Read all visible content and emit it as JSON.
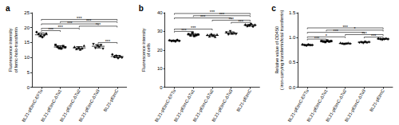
{
  "chart_data": [
    {
      "type": "scatter",
      "title": "a",
      "y_label": [
        "Fluorescence intensity",
        "of ferric-holo-transferrin"
      ],
      "categories": [
        "BL21-pEtmC-EFTu",
        "BL21-pEtmC-ΔTu1",
        "BL21-pEtmC-ΔTu2",
        "BL21-pEtmC-ΔTu3",
        "BL21-pEtmC"
      ],
      "groups": [
        {
          "marker": "circle",
          "values": [
            18.5,
            17.8,
            17.2,
            16.8,
            17.5,
            18.0
          ],
          "mean": 17.6,
          "error": 0.6
        },
        {
          "marker": "square",
          "values": [
            14.2,
            13.6,
            13.1,
            13.0,
            13.8,
            13.4
          ],
          "mean": 13.5,
          "error": 0.45
        },
        {
          "marker": "triangle",
          "values": [
            13.5,
            12.8,
            13.2,
            12.6,
            13.0,
            13.9
          ],
          "mean": 13.2,
          "error": 0.45
        },
        {
          "marker": "triangle-down",
          "values": [
            14.5,
            13.2,
            14.0,
            13.6,
            14.2,
            13.0
          ],
          "mean": 13.75,
          "error": 0.55
        },
        {
          "marker": "diamond",
          "values": [
            11.0,
            10.2,
            10.6,
            9.8,
            10.4,
            10.0
          ],
          "mean": 10.3,
          "error": 0.4
        }
      ],
      "comparisons": [
        {
          "pair": [
            0,
            1
          ],
          "label": "***"
        },
        {
          "pair": [
            0,
            2
          ],
          "label": "***"
        },
        {
          "pair": [
            0,
            3
          ],
          "label": "***"
        },
        {
          "pair": [
            0,
            4
          ],
          "label": "***"
        },
        {
          "pair": [
            1,
            4
          ],
          "label": "***"
        },
        {
          "pair": [
            2,
            4
          ],
          "label": "***"
        },
        {
          "pair": [
            3,
            4
          ],
          "label": "***"
        }
      ],
      "ylim": [
        0,
        25
      ],
      "yticks": [
        0,
        5,
        10,
        15,
        20,
        25
      ],
      "color": "#000000",
      "grid": false
    },
    {
      "type": "scatter",
      "title": "b",
      "y_label": [
        "Fluorescence intensity",
        "of cells"
      ],
      "categories": [
        "BL21-pEtmC-EFTu",
        "BL21-pEtmC-ΔTu1",
        "BL21-pEtmC-ΔTu2",
        "BL21-pEtmC-ΔTu3",
        "BL21-pEtmC"
      ],
      "groups": [
        {
          "marker": "circle",
          "values": [
            25.2,
            24.8,
            25.0,
            24.6,
            25.4,
            24.9
          ],
          "mean": 25.0,
          "error": 0.3
        },
        {
          "marker": "square",
          "values": [
            28.5,
            27.8,
            29.2,
            27.5,
            28.0,
            28.3
          ],
          "mean": 28.2,
          "error": 0.6
        },
        {
          "marker": "triangle",
          "values": [
            28.0,
            27.2,
            28.5,
            27.6,
            27.0,
            28.2
          ],
          "mean": 27.8,
          "error": 0.55
        },
        {
          "marker": "triangle-down",
          "values": [
            29.5,
            28.4,
            30.2,
            28.8,
            29.0,
            28.6
          ],
          "mean": 29.1,
          "error": 0.65
        },
        {
          "marker": "diamond",
          "values": [
            33.5,
            32.8,
            33.2,
            34.0,
            32.6,
            33.4
          ],
          "mean": 33.25,
          "error": 0.5
        }
      ],
      "comparisons": [
        {
          "pair": [
            0,
            1
          ],
          "label": "***"
        },
        {
          "pair": [
            0,
            2
          ],
          "label": "***"
        },
        {
          "pair": [
            0,
            3
          ],
          "label": "***"
        },
        {
          "pair": [
            0,
            4
          ],
          "label": "***"
        },
        {
          "pair": [
            1,
            4
          ],
          "label": "***"
        },
        {
          "pair": [
            2,
            4
          ],
          "label": "***"
        },
        {
          "pair": [
            3,
            4
          ],
          "label": "***"
        }
      ],
      "ylim": [
        0,
        40
      ],
      "yticks": [
        0,
        10,
        20,
        30,
        40
      ],
      "color": "#000000",
      "grid": false
    },
    {
      "type": "scatter",
      "title": "c",
      "y_label": [
        "Relative value of OD450",
        "( iron-carrying transferrin/total transferrin)"
      ],
      "categories": [
        "BL21-pEtmC-EFTu",
        "BL21-pEtmC-ΔTu1",
        "BL21-pEtmC-ΔTu2",
        "BL21-pEtmC-ΔTu3",
        "BL21-pEtmC"
      ],
      "groups": [
        {
          "marker": "circle",
          "values": [
            0.86,
            0.85,
            0.84,
            0.86,
            0.85,
            0.85
          ],
          "mean": 0.85,
          "error": 0.008
        },
        {
          "marker": "square",
          "values": [
            0.93,
            0.92,
            0.91,
            0.94,
            0.92,
            0.93
          ],
          "mean": 0.925,
          "error": 0.01
        },
        {
          "marker": "triangle",
          "values": [
            0.89,
            0.88,
            0.87,
            0.88,
            0.89,
            0.88
          ],
          "mean": 0.88,
          "error": 0.007
        },
        {
          "marker": "triangle-down",
          "values": [
            0.9,
            0.91,
            0.89,
            0.92,
            0.9,
            0.91
          ],
          "mean": 0.905,
          "error": 0.01
        },
        {
          "marker": "diamond",
          "values": [
            0.98,
            0.97,
            0.96,
            0.97,
            0.98,
            0.97
          ],
          "mean": 0.972,
          "error": 0.007
        }
      ],
      "comparisons": [
        {
          "pair": [
            0,
            1
          ],
          "label": "***"
        },
        {
          "pair": [
            0,
            2
          ],
          "label": "*"
        },
        {
          "pair": [
            0,
            3
          ],
          "label": "***"
        },
        {
          "pair": [
            0,
            4
          ],
          "label": "***"
        },
        {
          "pair": [
            1,
            4
          ],
          "label": "*"
        },
        {
          "pair": [
            2,
            4
          ],
          "label": "***"
        },
        {
          "pair": [
            3,
            4
          ],
          "label": "***"
        }
      ],
      "ylim": [
        0,
        1.5
      ],
      "yticks": [
        {
          "value": 0,
          "label": "0.0"
        },
        0.5,
        {
          "value": 1,
          "label": "1.0"
        },
        1.5
      ],
      "color": "#000000",
      "grid": false
    }
  ]
}
